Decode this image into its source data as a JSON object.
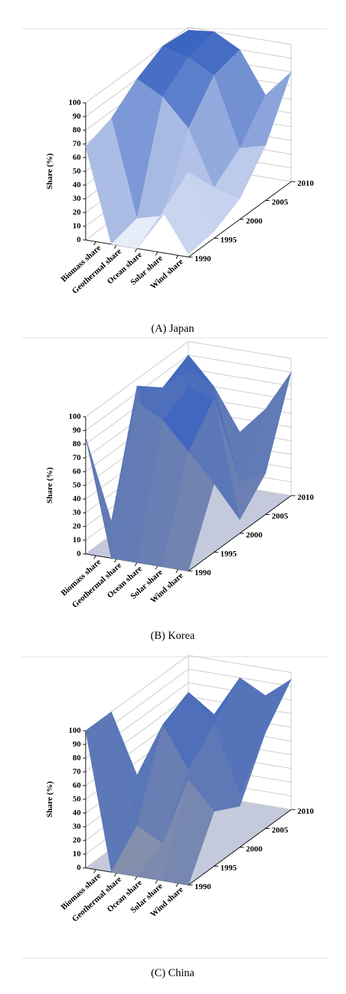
{
  "charts": [
    {
      "chart_data": {
        "type": "surface",
        "label": "(A)",
        "title": "Japan",
        "y_label": "Share (%)",
        "x": [
          1990,
          1995,
          2000,
          2005,
          2010
        ],
        "xlim": [
          1990,
          2010
        ],
        "xticks": [
          1990,
          1995,
          2000,
          2005,
          2010
        ],
        "ylim": [
          0,
          100
        ],
        "yticks": [
          0,
          10,
          20,
          30,
          40,
          50,
          60,
          70,
          80,
          90,
          100
        ],
        "grid": true,
        "low_color": "#eef1fb",
        "high_color": "#3862c0",
        "series": [
          {
            "name": "Biomass share",
            "values": [
              68,
              75,
              90,
              100,
              98
            ]
          },
          {
            "name": "Geothermal share",
            "values": [
              0,
              5,
              80,
              95,
              100
            ]
          },
          {
            "name": "Ocean share",
            "values": [
              0,
              10,
              60,
              85,
              90
            ]
          },
          {
            "name": "Solar share",
            "values": [
              30,
              45,
              20,
              35,
              60
            ]
          },
          {
            "name": "Wind share",
            "values": [
              2,
              5,
              15,
              40,
              80
            ]
          }
        ]
      }
    },
    {
      "chart_data": {
        "type": "surface",
        "label": "(B)",
        "title": "Korea",
        "y_label": "Share (%)",
        "x": [
          1990,
          1995,
          2000,
          2005,
          2010
        ],
        "xlim": [
          1990,
          2010
        ],
        "xticks": [
          1990,
          1995,
          2000,
          2005,
          2010
        ],
        "ylim": [
          0,
          100
        ],
        "yticks": [
          0,
          10,
          20,
          30,
          40,
          50,
          60,
          70,
          80,
          90,
          100
        ],
        "grid": true,
        "low_color": "#8a93ab",
        "high_color": "#3862c0",
        "floor_color": "#c4cadc",
        "series": [
          {
            "name": "Biomass share",
            "values": [
              85,
              10,
              95,
              80,
              90
            ]
          },
          {
            "name": "Geothermal share",
            "values": [
              0,
              100,
              20,
              95,
              70
            ]
          },
          {
            "name": "Ocean share",
            "values": [
              0,
              90,
              100,
              85,
              40
            ]
          },
          {
            "name": "Solar share",
            "values": [
              0,
              70,
              95,
              20,
              60
            ]
          },
          {
            "name": "Wind share",
            "values": [
              0,
              50,
              10,
              30,
              90
            ]
          }
        ]
      }
    },
    {
      "chart_data": {
        "type": "surface",
        "label": "(C)",
        "title": "China",
        "y_label": "Share (%)",
        "x": [
          1990,
          1995,
          2000,
          2005,
          2010
        ],
        "xlim": [
          1990,
          2010
        ],
        "xticks": [
          1990,
          1995,
          2000,
          2005,
          2010
        ],
        "ylim": [
          0,
          100
        ],
        "yticks": [
          0,
          10,
          20,
          30,
          40,
          50,
          60,
          70,
          80,
          90,
          100
        ],
        "grid": true,
        "low_color": "#8a93ab",
        "high_color": "#3862c0",
        "floor_color": "#c4cadc",
        "series": [
          {
            "name": "Biomass share",
            "values": [
              100,
              100,
              40,
              30,
              45
            ]
          },
          {
            "name": "Geothermal share",
            "values": [
              0,
              20,
              80,
              90,
              60
            ]
          },
          {
            "name": "Ocean share",
            "values": [
              0,
              10,
              50,
              70,
              90
            ]
          },
          {
            "name": "Solar share",
            "values": [
              0,
              60,
              85,
              20,
              80
            ]
          },
          {
            "name": "Wind share",
            "values": [
              0,
              40,
              30,
              70,
              95
            ]
          }
        ]
      }
    }
  ]
}
